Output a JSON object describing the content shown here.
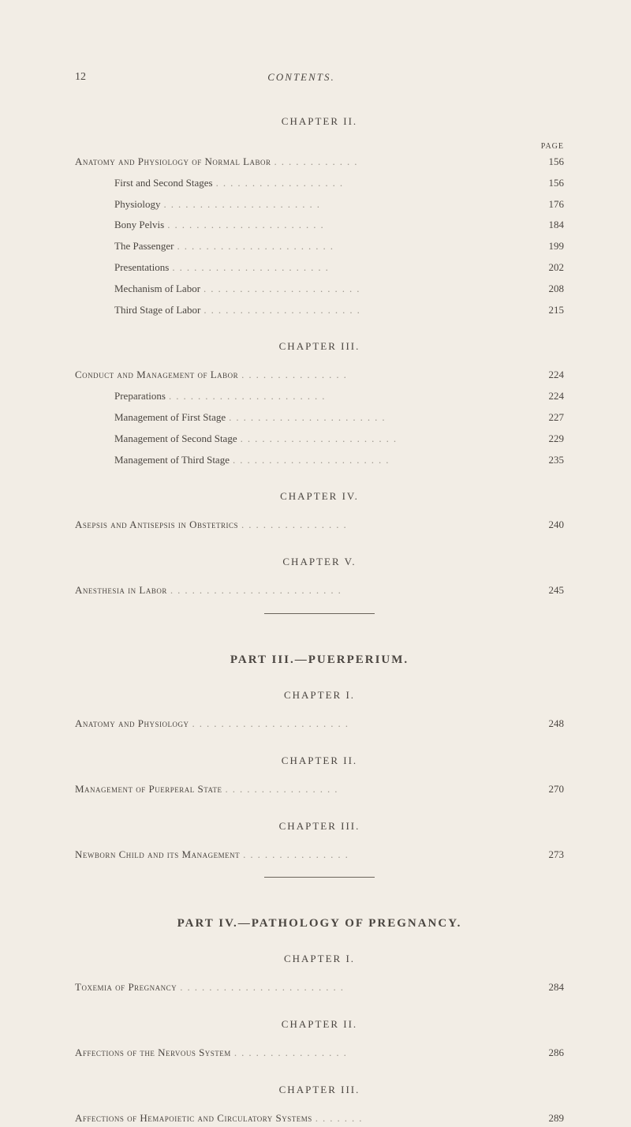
{
  "page_number": "12",
  "header_title": "CONTENTS.",
  "page_label": "PAGE",
  "chapters": {
    "ch2": {
      "title": "CHAPTER II.",
      "entries": [
        {
          "text": "Anatomy and Physiology of Normal Labor",
          "page": "156",
          "main": true
        },
        {
          "text": "First and Second Stages",
          "page": "156",
          "main": false
        },
        {
          "text": "Physiology",
          "page": "176",
          "main": false
        },
        {
          "text": "Bony Pelvis",
          "page": "184",
          "main": false
        },
        {
          "text": "The Passenger",
          "page": "199",
          "main": false
        },
        {
          "text": "Presentations",
          "page": "202",
          "main": false
        },
        {
          "text": "Mechanism of Labor",
          "page": "208",
          "main": false
        },
        {
          "text": "Third Stage of Labor",
          "page": "215",
          "main": false
        }
      ]
    },
    "ch3": {
      "title": "CHAPTER III.",
      "entries": [
        {
          "text": "Conduct and Management of Labor",
          "page": "224",
          "main": true
        },
        {
          "text": "Preparations",
          "page": "224",
          "main": false
        },
        {
          "text": "Management of First Stage",
          "page": "227",
          "main": false
        },
        {
          "text": "Management of Second Stage",
          "page": "229",
          "main": false
        },
        {
          "text": "Management of Third Stage",
          "page": "235",
          "main": false
        }
      ]
    },
    "ch4": {
      "title": "CHAPTER IV.",
      "entries": [
        {
          "text": "Asepsis and Antisepsis in Obstetrics",
          "page": "240",
          "main": true
        }
      ]
    },
    "ch5": {
      "title": "CHAPTER V.",
      "entries": [
        {
          "text": "Anesthesia in Labor",
          "page": "245",
          "main": true
        }
      ]
    }
  },
  "part3": {
    "title": "PART III.—PUERPERIUM.",
    "chapters": {
      "ch1": {
        "title": "CHAPTER I.",
        "entries": [
          {
            "text": "Anatomy and Physiology",
            "page": "248",
            "main": true
          }
        ]
      },
      "ch2": {
        "title": "CHAPTER II.",
        "entries": [
          {
            "text": "Management of Puerperal State",
            "page": "270",
            "main": true
          }
        ]
      },
      "ch3": {
        "title": "CHAPTER III.",
        "entries": [
          {
            "text": "Newborn Child and its Management",
            "page": "273",
            "main": true
          }
        ]
      }
    }
  },
  "part4": {
    "title": "PART IV.—PATHOLOGY OF PREGNANCY.",
    "chapters": {
      "ch1": {
        "title": "CHAPTER I.",
        "entries": [
          {
            "text": "Toxemia of Pregnancy",
            "page": "284",
            "main": true
          }
        ]
      },
      "ch2": {
        "title": "CHAPTER II.",
        "entries": [
          {
            "text": "Affections of the Nervous System",
            "page": "286",
            "main": true
          }
        ]
      },
      "ch3": {
        "title": "CHAPTER III.",
        "entries": [
          {
            "text": "Affections of Hemapoietic and Circulatory Systems",
            "page": "289",
            "main": true
          }
        ]
      }
    }
  }
}
